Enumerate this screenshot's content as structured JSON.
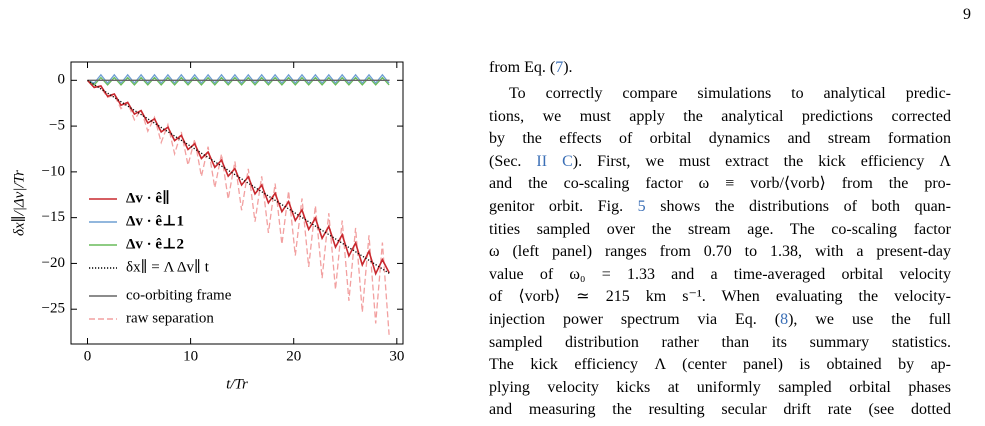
{
  "page_number": "9",
  "chart_data": {
    "type": "line",
    "xlabel": "t/Tr",
    "ylabel": "δx∥/|Δv|/Tr",
    "xlim": [
      -1.6,
      30.6
    ],
    "ylim": [
      -28.8,
      2
    ],
    "xticks": [
      0,
      10,
      20,
      30
    ],
    "yticks": [
      0,
      {
        "value": -5,
        "label": "−5"
      },
      {
        "value": -10,
        "label": "−10"
      },
      {
        "value": -15,
        "label": "−15"
      },
      {
        "value": -20,
        "label": "−20"
      },
      {
        "value": -25,
        "label": "−25"
      }
    ],
    "legend": "left",
    "x": [
      0,
      0.65,
      1.3,
      1.95,
      2.6,
      3.25,
      3.9,
      4.55,
      5.2,
      5.85,
      6.5,
      7.15,
      7.8,
      8.45,
      9.1,
      9.75,
      10.4,
      11.05,
      11.7,
      12.35,
      13,
      13.65,
      14.3,
      14.95,
      15.6,
      16.25,
      16.9,
      17.55,
      18.2,
      18.85,
      19.5,
      20.15,
      20.8,
      21.45,
      22.1,
      22.75,
      23.4,
      24.05,
      24.7,
      25.35,
      26,
      26.65,
      27.3,
      27.95,
      28.6,
      29.25
    ],
    "series": [
      {
        "name": "Δv · ê∥",
        "color": "#c8282e",
        "style": "solid",
        "values": [
          0,
          -0.79,
          -0.61,
          -1.75,
          -1.5,
          -2.72,
          -2.41,
          -3.69,
          -3.31,
          -4.66,
          -4.22,
          -5.63,
          -5.12,
          -6.59,
          -6.02,
          -7.56,
          -6.93,
          -8.54,
          -7.83,
          -9.5,
          -8.73,
          -10.47,
          -9.64,
          -11.43,
          -10.54,
          -12.41,
          -11.45,
          -13.38,
          -12.34,
          -14.34,
          -13.25,
          -15.31,
          -14.16,
          -16.28,
          -15.06,
          -17.25,
          -15.96,
          -18.22,
          -16.86,
          -19.18,
          -17.77,
          -20.16,
          -18.68,
          -21.12,
          -19.59,
          -21.0
        ]
      },
      {
        "name": "Δv · ê⊥1",
        "color": "#6f9fd2",
        "style": "solid",
        "values": [
          0,
          -0.3,
          0.6,
          -0.3,
          0.6,
          -0.3,
          0.6,
          -0.3,
          0.6,
          -0.3,
          0.6,
          -0.3,
          0.6,
          -0.3,
          0.6,
          -0.3,
          0.6,
          -0.3,
          0.6,
          -0.3,
          0.6,
          -0.3,
          0.6,
          -0.3,
          0.6,
          -0.3,
          0.6,
          -0.3,
          0.6,
          -0.3,
          0.6,
          -0.3,
          0.6,
          -0.3,
          0.6,
          -0.3,
          0.6,
          -0.3,
          0.6,
          -0.3,
          0.6,
          -0.3,
          0.6,
          -0.3,
          0.6,
          -0.3
        ]
      },
      {
        "name": "Δv · ê⊥2",
        "color": "#68bb5a",
        "style": "solid",
        "values": [
          0,
          -0.5,
          0.3,
          -0.5,
          0.3,
          -0.5,
          0.3,
          -0.5,
          0.3,
          -0.5,
          0.3,
          -0.5,
          0.3,
          -0.5,
          0.3,
          -0.5,
          0.3,
          -0.5,
          0.3,
          -0.5,
          0.3,
          -0.5,
          0.3,
          -0.5,
          0.3,
          -0.5,
          0.3,
          -0.5,
          0.3,
          -0.5,
          0.3,
          -0.5,
          0.3,
          -0.5,
          0.3,
          -0.5,
          0.3,
          -0.5,
          0.3,
          -0.5,
          0.3,
          -0.5,
          0.3,
          -0.5,
          0.3,
          -0.5
        ]
      },
      {
        "name": "δx∥ = Λ Δv∥ t",
        "color": "#000000",
        "style": "dotted",
        "x": [
          0,
          29.3
        ],
        "values": [
          0,
          -21.1
        ]
      },
      {
        "name": "co-orbiting frame",
        "color": "#666666",
        "style": "solid",
        "x": [
          0,
          29.3
        ],
        "values": [
          0,
          0
        ]
      },
      {
        "name": "raw separation",
        "color": "#f2a0a0",
        "style": "dashed",
        "values": [
          0,
          -0.62,
          -0.81,
          -1.85,
          -1.61,
          -3.09,
          -2.42,
          -4.32,
          -3.22,
          -5.56,
          -4.03,
          -6.79,
          -4.84,
          -8.03,
          -5.64,
          -9.26,
          -6.45,
          -10.5,
          -7.25,
          -11.73,
          -8.06,
          -12.97,
          -8.87,
          -14.2,
          -9.67,
          -15.44,
          -10.48,
          -16.67,
          -11.28,
          -17.91,
          -12.09,
          -19.14,
          -12.9,
          -20.38,
          -13.7,
          -21.61,
          -14.51,
          -22.85,
          -15.31,
          -24.08,
          -16.12,
          -25.32,
          -16.93,
          -26.55,
          -17.73,
          -27.79
        ]
      }
    ]
  },
  "text": {
    "lines": [
      [
        "from Eq. (",
        "7",
        ")."
      ],
      [
        "To correctly compare simulations to analytical predic-"
      ],
      [
        "tions, we must apply the analytical predictions corrected"
      ],
      [
        "by the effects of orbital dynamics and stream formation"
      ],
      [
        "(Sec. ",
        "II C",
        "). First, we must extract the kick efficiency Λ"
      ],
      [
        "and the co-scaling factor ω ≡ vorb/⟨vorb⟩ from the pro-"
      ],
      [
        "genitor orbit. Fig. ",
        "5",
        " shows the distributions of both quan-"
      ],
      [
        "tities sampled over the stream age. The co-scaling factor"
      ],
      [
        "ω (left panel) ranges from 0.70 to 1.38, with a present-day"
      ],
      [
        "value of ω₀ = 1.33 and a time-averaged orbital velocity"
      ],
      [
        "of ⟨vorb⟩ ≃ 215 km s⁻¹. When evaluating the velocity-"
      ],
      [
        "injection power spectrum via Eq. (",
        "8",
        "), we use the full"
      ],
      [
        "sampled distribution rather than its summary statistics."
      ],
      [
        "The kick efficiency Λ (center panel) is obtained by ap-"
      ],
      [
        "plying velocity kicks at uniformly sampled orbital phases"
      ],
      [
        "and measuring the resulting secular drift rate (see dotted"
      ]
    ]
  }
}
